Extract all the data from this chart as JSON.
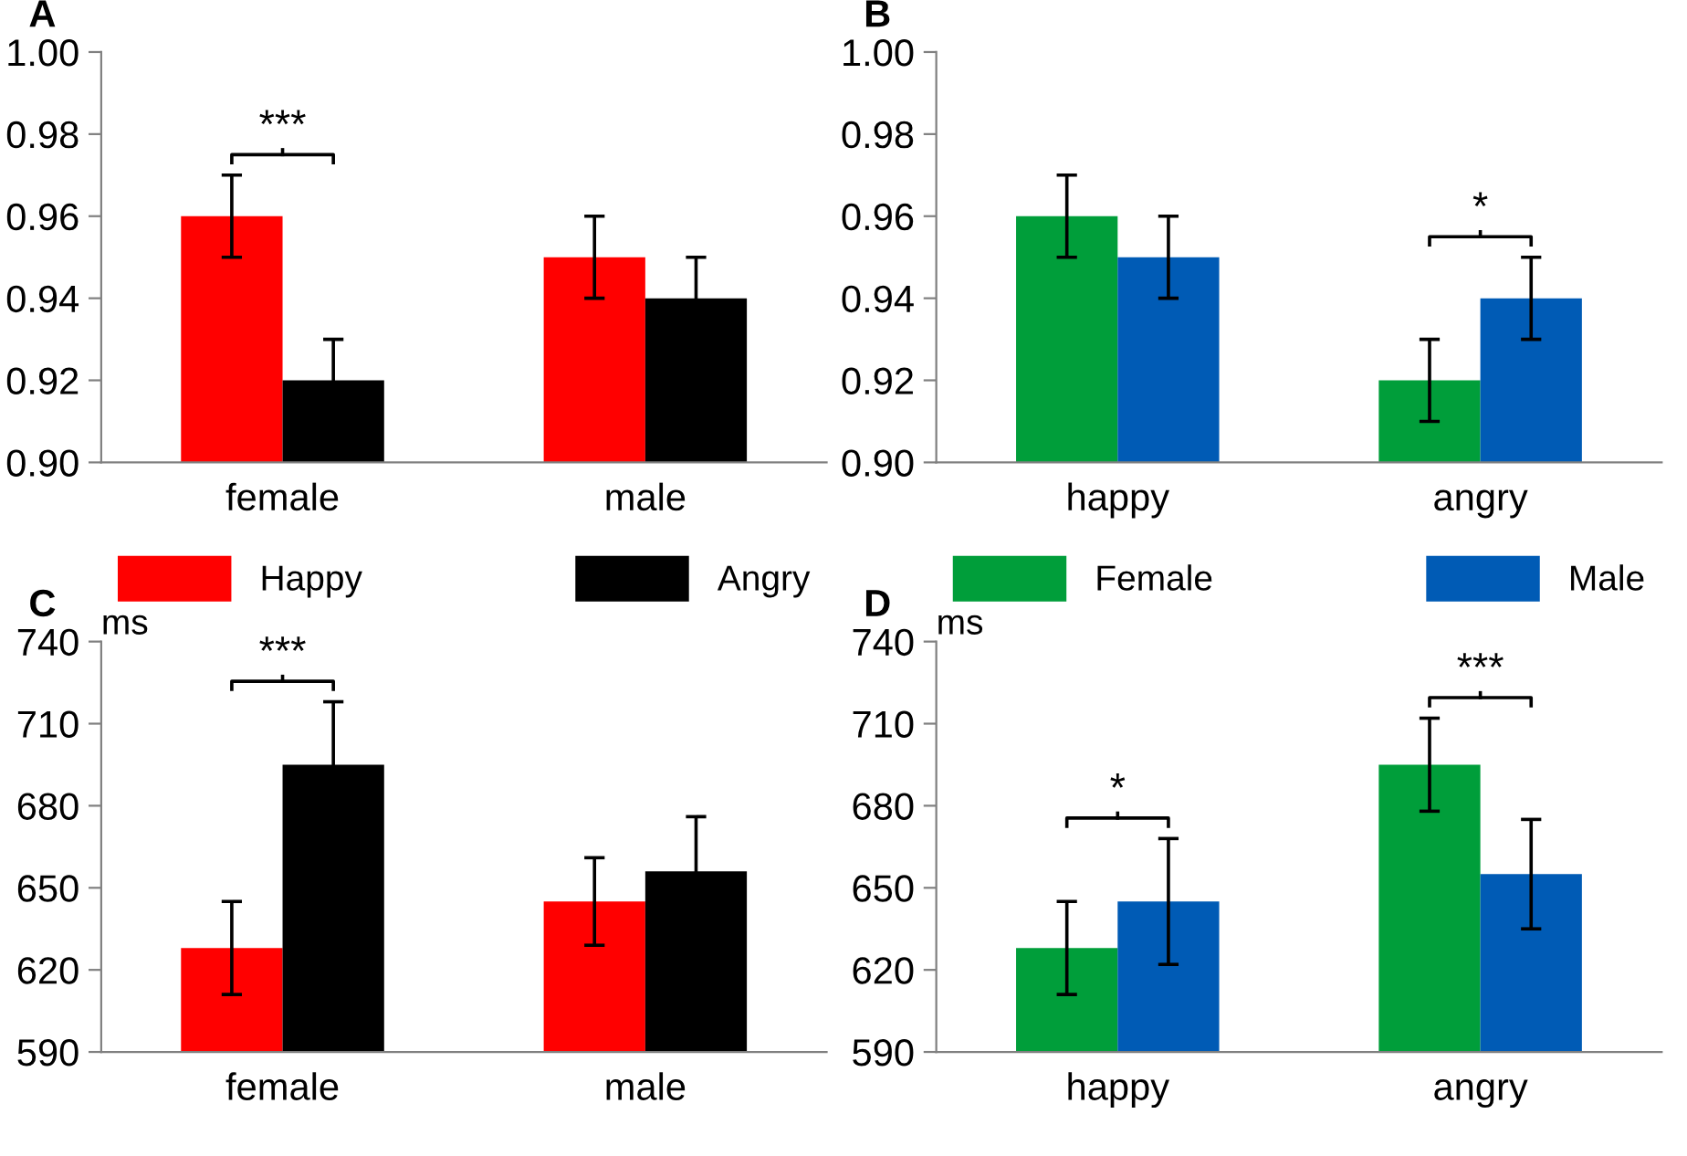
{
  "chart_data": [
    {
      "type": "bar",
      "title": "A",
      "categories": [
        "female",
        "male"
      ],
      "ylim": [
        0.9,
        1.0
      ],
      "yticks": [
        {
          "value": 0.9,
          "label": "0.90"
        },
        {
          "value": 0.92,
          "label": "0.92"
        },
        {
          "value": 0.94,
          "label": "0.94"
        },
        {
          "value": 0.96,
          "label": "0.96"
        },
        {
          "value": 0.98,
          "label": "0.98"
        },
        {
          "value": 1.0,
          "label": "1.00"
        }
      ],
      "grid": false,
      "legend": false,
      "series": [
        {
          "color": "#ff0000",
          "values": [
            0.96,
            0.95
          ],
          "errors": [
            0.01,
            0.01
          ]
        },
        {
          "color": "#000000",
          "values": [
            0.92,
            0.94
          ],
          "errors": [
            0.01,
            0.01
          ]
        }
      ],
      "annotations": [
        "***"
      ]
    },
    {
      "type": "bar",
      "title": "B",
      "categories": [
        "happy",
        "angry"
      ],
      "ylim": [
        0.9,
        1.0
      ],
      "yticks": [
        {
          "value": 0.9,
          "label": "0.90"
        },
        {
          "value": 0.92,
          "label": "0.92"
        },
        {
          "value": 0.94,
          "label": "0.94"
        },
        {
          "value": 0.96,
          "label": "0.96"
        },
        {
          "value": 0.98,
          "label": "0.98"
        },
        {
          "value": 1.0,
          "label": "1.00"
        }
      ],
      "grid": false,
      "legend": false,
      "series": [
        {
          "color": "#009e3a",
          "values": [
            0.96,
            0.92
          ],
          "errors": [
            0.01,
            0.01
          ]
        },
        {
          "color": "#005bb5",
          "values": [
            0.95,
            0.94
          ],
          "errors": [
            0.01,
            0.01
          ]
        }
      ],
      "annotations": [
        "*"
      ]
    },
    {
      "type": "bar",
      "title": "C",
      "ylabel": "ms",
      "categories": [
        "female",
        "male"
      ],
      "ylim": [
        590,
        740
      ],
      "yticks": [
        590,
        620,
        650,
        680,
        710,
        740
      ],
      "grid": false,
      "legend": "top",
      "series": [
        {
          "name": "Happy",
          "color": "#ff0000",
          "values": [
            628,
            645
          ],
          "errors": [
            17,
            16
          ]
        },
        {
          "name": "Angry",
          "color": "#000000",
          "values": [
            695,
            656
          ],
          "errors": [
            23,
            20
          ]
        }
      ],
      "annotations": [
        "***"
      ]
    },
    {
      "type": "bar",
      "title": "D",
      "ylabel": "ms",
      "categories": [
        "happy",
        "angry"
      ],
      "ylim": [
        590,
        740
      ],
      "yticks": [
        590,
        620,
        650,
        680,
        710,
        740
      ],
      "grid": false,
      "legend": "top",
      "series": [
        {
          "name": "Female",
          "color": "#009e3a",
          "values": [
            628,
            695
          ],
          "errors": [
            17,
            17
          ]
        },
        {
          "name": "Male",
          "color": "#005bb5",
          "values": [
            645,
            655
          ],
          "errors": [
            23,
            20
          ]
        }
      ],
      "annotations": [
        "*",
        "***"
      ]
    }
  ]
}
